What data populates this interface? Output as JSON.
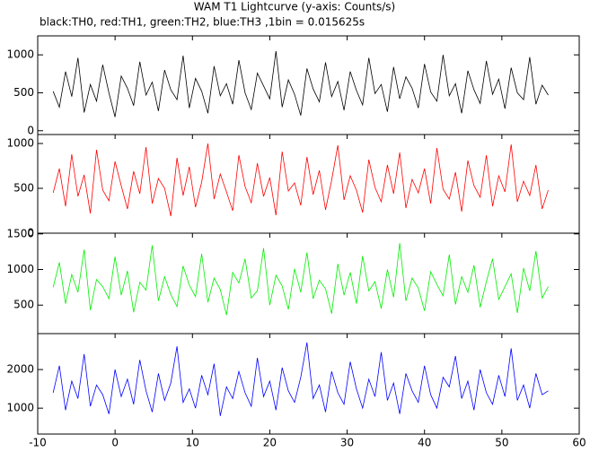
{
  "chart_data": {
    "type": "line",
    "title": "WAM T1 Lightcurve (y-axis: Counts/s)",
    "subtitle": "black:TH0, red:TH1, green:TH2, blue:TH3 ,1bin = 0.015625s",
    "xlim": [
      -10,
      60
    ],
    "xticks": [
      -10,
      0,
      10,
      20,
      30,
      40,
      50,
      60
    ],
    "x": [
      -8,
      -7.2,
      -6.4,
      -5.6,
      -4.8,
      -4,
      -3.2,
      -2.4,
      -1.6,
      -0.8,
      0,
      0.8,
      1.6,
      2.4,
      3.2,
      4,
      4.8,
      5.6,
      6.4,
      7.2,
      8,
      8.8,
      9.6,
      10.4,
      11.2,
      12,
      12.8,
      13.6,
      14.4,
      15.2,
      16,
      16.8,
      17.6,
      18.4,
      19.2,
      20,
      20.8,
      21.6,
      22.4,
      23.2,
      24,
      24.8,
      25.6,
      26.4,
      27.2,
      28,
      28.8,
      29.6,
      30.4,
      31.2,
      32,
      32.8,
      33.6,
      34.4,
      35.2,
      36,
      36.8,
      37.6,
      38.4,
      39.2,
      40,
      40.8,
      41.6,
      42.4,
      43.2,
      44,
      44.8,
      45.6,
      46.4,
      47.2,
      48,
      48.8,
      49.6,
      50.4,
      51.2,
      52,
      52.8,
      53.6,
      54.4,
      55.2,
      56
    ],
    "panels": [
      {
        "color": "#000000",
        "ylim": [
          -50,
          1250
        ],
        "yticks": [
          0,
          500,
          1000
        ],
        "values": [
          520,
          310,
          780,
          450,
          960,
          240,
          610,
          390,
          870,
          500,
          180,
          720,
          560,
          330,
          910,
          470,
          640,
          260,
          800,
          540,
          410,
          990,
          300,
          690,
          520,
          230,
          850,
          460,
          620,
          350,
          930,
          500,
          280,
          760,
          590,
          420,
          1050,
          310,
          670,
          480,
          200,
          820,
          550,
          380,
          900,
          450,
          650,
          270,
          780,
          530,
          340,
          960,
          490,
          610,
          250,
          840,
          420,
          710,
          560,
          300,
          880,
          510,
          390,
          1000,
          460,
          620,
          230,
          790,
          540,
          360,
          920,
          480,
          680,
          290,
          830,
          500,
          410,
          970,
          350,
          600,
          470
        ]
      },
      {
        "color": "#ff0000",
        "ylim": [
          0,
          1100
        ],
        "yticks": [
          0,
          500,
          1000
        ],
        "values": [
          450,
          720,
          300,
          880,
          410,
          650,
          220,
          930,
          480,
          360,
          800,
          530,
          270,
          690,
          440,
          960,
          330,
          610,
          500,
          190,
          840,
          420,
          740,
          290,
          570,
          1000,
          380,
          660,
          460,
          250,
          870,
          520,
          340,
          780,
          410,
          620,
          200,
          910,
          470,
          560,
          310,
          850,
          430,
          700,
          260,
          590,
          980,
          370,
          640,
          480,
          230,
          820,
          510,
          350,
          760,
          440,
          900,
          280,
          600,
          450,
          720,
          330,
          950,
          490,
          380,
          680,
          240,
          810,
          530,
          400,
          870,
          300,
          640,
          460,
          990,
          350,
          580,
          420,
          760,
          270,
          480
        ]
      },
      {
        "color": "#00ee00",
        "ylim": [
          100,
          1510
        ],
        "yticks": [
          500,
          1000,
          1500
        ],
        "values": [
          750,
          1100,
          520,
          930,
          680,
          1280,
          430,
          860,
          760,
          590,
          1180,
          640,
          980,
          400,
          820,
          710,
          1340,
          560,
          900,
          650,
          480,
          1050,
          780,
          620,
          1220,
          540,
          880,
          720,
          360,
          960,
          810,
          1150,
          600,
          700,
          1300,
          500,
          920,
          770,
          440,
          1010,
          680,
          1240,
          590,
          850,
          730,
          380,
          1080,
          640,
          960,
          520,
          1190,
          700,
          830,
          450,
          1000,
          610,
          1370,
          560,
          880,
          740,
          420,
          970,
          790,
          630,
          1210,
          510,
          900,
          680,
          1060,
          470,
          830,
          1150,
          580,
          760,
          940,
          390,
          1020,
          700,
          1260,
          600,
          760
        ]
      },
      {
        "color": "#0000ff",
        "ylim": [
          330,
          2930
        ],
        "yticks": [
          1000,
          2000
        ],
        "values": [
          1400,
          2100,
          950,
          1700,
          1250,
          2400,
          1050,
          1600,
          1350,
          850,
          2000,
          1300,
          1750,
          1100,
          2250,
          1450,
          900,
          1900,
          1200,
          1650,
          2600,
          1150,
          1500,
          1000,
          1850,
          1350,
          2150,
          800,
          1550,
          1250,
          1950,
          1400,
          1050,
          2300,
          1300,
          1700,
          950,
          2050,
          1450,
          1150,
          1800,
          2700,
          1250,
          1600,
          900,
          1950,
          1400,
          1100,
          2200,
          1500,
          1000,
          1750,
          1300,
          2450,
          1200,
          1650,
          850,
          1900,
          1450,
          1150,
          2100,
          1350,
          1000,
          1800,
          1550,
          2350,
          1250,
          1700,
          950,
          2000,
          1400,
          1100,
          1850,
          1300,
          2550,
          1200,
          1600,
          1000,
          1900,
          1350,
          1450
        ]
      }
    ]
  }
}
